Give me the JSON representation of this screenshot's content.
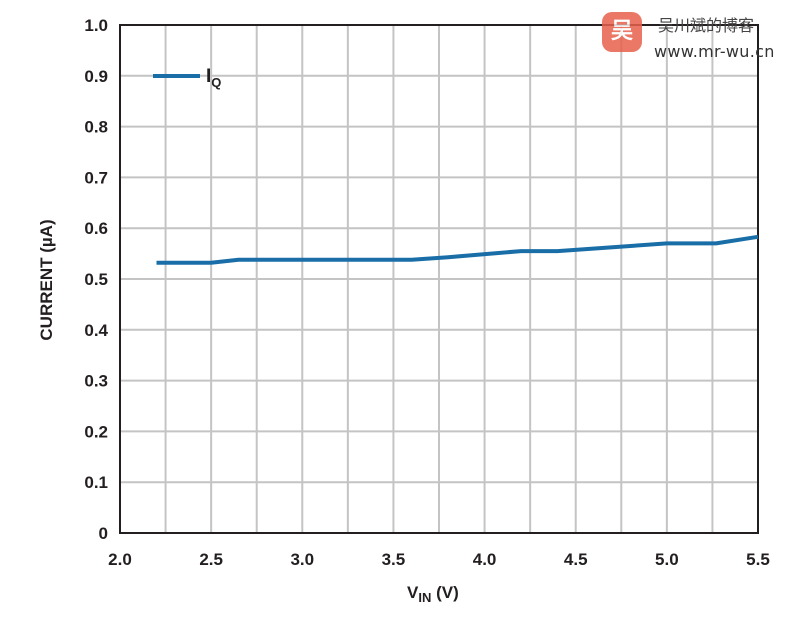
{
  "chart_data": {
    "type": "line",
    "title": "",
    "xlabel": "V",
    "xlabel_sub": "IN",
    "xlabel_unit": " (V)",
    "ylabel": "CURRENT (µA)",
    "xlim": [
      2.0,
      5.5
    ],
    "ylim": [
      0,
      1.0
    ],
    "x_ticks": [
      "2.0",
      "2.5",
      "3.0",
      "3.5",
      "4.0",
      "4.5",
      "5.0",
      "5.5"
    ],
    "y_ticks": [
      "0",
      "0.1",
      "0.2",
      "0.3",
      "0.4",
      "0.5",
      "0.6",
      "0.7",
      "0.8",
      "0.9",
      "1.0"
    ],
    "x_minor_step": 0.25,
    "grid": true,
    "legend_position": "top-left",
    "series": [
      {
        "name": "I",
        "name_sub": "Q",
        "color": "#1a6ea8",
        "x": [
          2.2,
          2.5,
          2.65,
          3.0,
          3.6,
          3.8,
          4.2,
          4.4,
          4.8,
          5.0,
          5.27,
          5.5
        ],
        "y": [
          0.532,
          0.532,
          0.538,
          0.538,
          0.538,
          0.543,
          0.555,
          0.555,
          0.565,
          0.57,
          0.57,
          0.583
        ]
      }
    ]
  },
  "watermark": {
    "logo_glyph": "吴",
    "title": "吴川斌的博客",
    "url": "www.mr-wu.cn"
  }
}
